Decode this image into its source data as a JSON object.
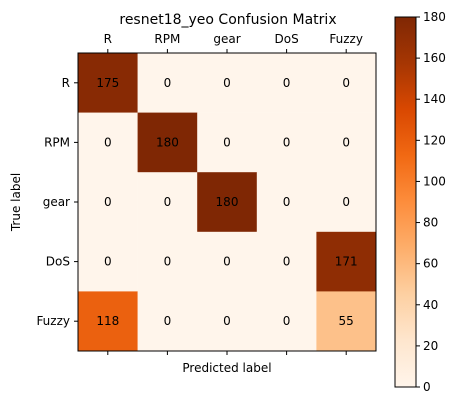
{
  "chart_data": {
    "type": "heatmap",
    "title": "resnet18_yeo Confusion Matrix",
    "xlabel": "Predicted label",
    "ylabel": "True label",
    "x_categories": [
      "R",
      "RPM",
      "gear",
      "DoS",
      "Fuzzy"
    ],
    "y_categories": [
      "R",
      "RPM",
      "gear",
      "DoS",
      "Fuzzy"
    ],
    "values": [
      [
        175,
        0,
        0,
        0,
        0
      ],
      [
        0,
        180,
        0,
        0,
        0
      ],
      [
        0,
        0,
        180,
        0,
        0
      ],
      [
        0,
        0,
        0,
        0,
        171
      ],
      [
        118,
        0,
        0,
        0,
        55
      ]
    ],
    "colormap": "Oranges",
    "colorbar": {
      "range": [
        0,
        180
      ],
      "ticks": [
        0,
        20,
        40,
        60,
        80,
        100,
        120,
        140,
        160,
        180
      ]
    },
    "x_tick_position": "top",
    "grid": false
  }
}
